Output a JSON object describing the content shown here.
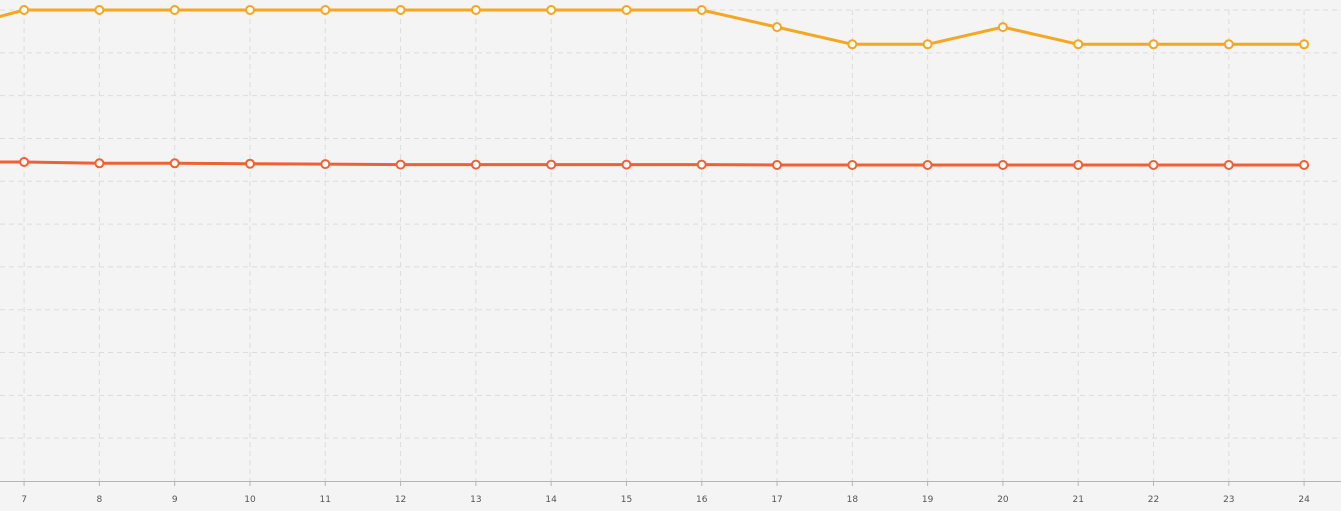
{
  "chart_data": {
    "type": "line",
    "x": [
      7,
      8,
      9,
      10,
      11,
      12,
      13,
      14,
      15,
      16,
      17,
      18,
      19,
      20,
      21,
      22,
      23,
      24
    ],
    "x_range": [
      6.68,
      24.49
    ],
    "ylim": [
      0,
      11
    ],
    "y_ticks": [
      1,
      2,
      3,
      4,
      5,
      6,
      7,
      8,
      9,
      10,
      11
    ],
    "y_tick_labels_visible": false,
    "grid": true,
    "legend": "none",
    "series": [
      {
        "color": "#f5a623",
        "leading_value": 10.85,
        "values": [
          11,
          11,
          11,
          11,
          11,
          11,
          11,
          11,
          11,
          11,
          10.6,
          10.2,
          10.2,
          10.6,
          10.2,
          10.2,
          10.2,
          10.2
        ]
      },
      {
        "color": "#ef6035",
        "leading_value": 7.45,
        "values": [
          7.45,
          7.42,
          7.42,
          7.41,
          7.4,
          7.39,
          7.39,
          7.39,
          7.39,
          7.39,
          7.38,
          7.38,
          7.38,
          7.38,
          7.38,
          7.38,
          7.38,
          7.38
        ]
      }
    ]
  }
}
